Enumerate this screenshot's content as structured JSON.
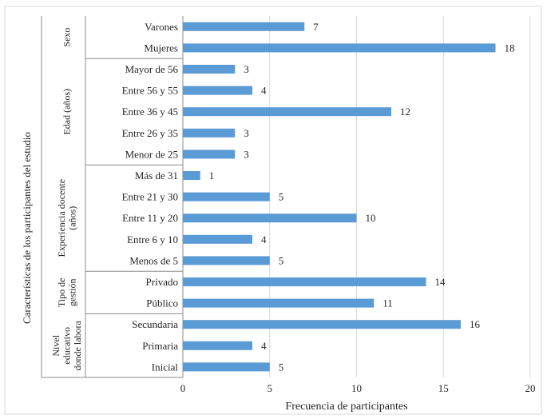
{
  "chart_data": {
    "type": "bar",
    "orientation": "horizontal",
    "ylabel": "Características de los participantes del estudio",
    "xlabel": "Frecuencia de participantes",
    "xlim": [
      0,
      20
    ],
    "xticks": [
      0,
      5,
      10,
      15,
      20
    ],
    "grid": true,
    "bar_color": "#5B9BD5",
    "groups": [
      {
        "label": "Sexo",
        "label_lines": [
          "Sexo"
        ],
        "categories": [
          {
            "label": "Varones",
            "value": 7
          },
          {
            "label": "Mujeres",
            "value": 18
          }
        ]
      },
      {
        "label": "Edad (años)",
        "label_lines": [
          "Edad (años)"
        ],
        "categories": [
          {
            "label": "Mayor de 56",
            "value": 3
          },
          {
            "label": "Entre 56 y 55",
            "value": 4
          },
          {
            "label": "Entre 36 y 45",
            "value": 12
          },
          {
            "label": "Entre 26 y 35",
            "value": 3
          },
          {
            "label": "Menor de 25",
            "value": 3
          }
        ]
      },
      {
        "label": "Experiencia docente (años)",
        "label_lines": [
          "Experiencia docente",
          "(años)"
        ],
        "categories": [
          {
            "label": "Más de 31",
            "value": 1
          },
          {
            "label": "Entre 21 y 30",
            "value": 5
          },
          {
            "label": "Entre 11 y 20",
            "value": 10
          },
          {
            "label": "Entre 6 y 10",
            "value": 4
          },
          {
            "label": "Menos de 5",
            "value": 5
          }
        ]
      },
      {
        "label": "Tipo de gestión",
        "label_lines": [
          "Tipo de",
          "gestión"
        ],
        "categories": [
          {
            "label": "Privado",
            "value": 14
          },
          {
            "label": "Público",
            "value": 11
          }
        ]
      },
      {
        "label": "Nivel educativo donde labora",
        "label_lines": [
          "Nivel",
          "educativo",
          "donde labora"
        ],
        "categories": [
          {
            "label": "Secundaria",
            "value": 16
          },
          {
            "label": "Primaria",
            "value": 4
          },
          {
            "label": "Inicial",
            "value": 5
          }
        ]
      }
    ]
  }
}
